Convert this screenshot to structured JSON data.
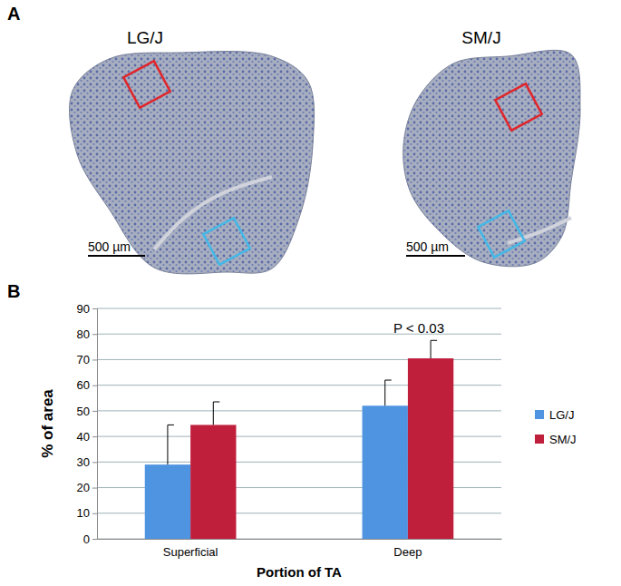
{
  "panel_labels": [
    "A",
    "B"
  ],
  "images": [
    {
      "title": "LG/J",
      "scale_bar": "500 µm"
    },
    {
      "title": "SM/J",
      "scale_bar": "500 µm"
    }
  ],
  "chart_data": {
    "type": "bar",
    "x_label": "Portion of TA",
    "y_label": "% of area",
    "categories": [
      "Superficial",
      "Deep"
    ],
    "series": [
      {
        "name": "LG/J",
        "color": "#4f94e0",
        "values": [
          29,
          52
        ],
        "errors": [
          15.5,
          10
        ]
      },
      {
        "name": "SM/J",
        "color": "#c01f3c",
        "values": [
          44.5,
          70.5
        ],
        "errors": [
          9,
          7
        ]
      }
    ],
    "annotations": [
      {
        "text": "P < 0.03",
        "category": "Deep"
      }
    ],
    "ylim": [
      0,
      90
    ],
    "yticks": [
      0,
      10,
      20,
      30,
      40,
      50,
      60,
      70,
      80,
      90
    ],
    "grid": true,
    "legend": "right"
  }
}
